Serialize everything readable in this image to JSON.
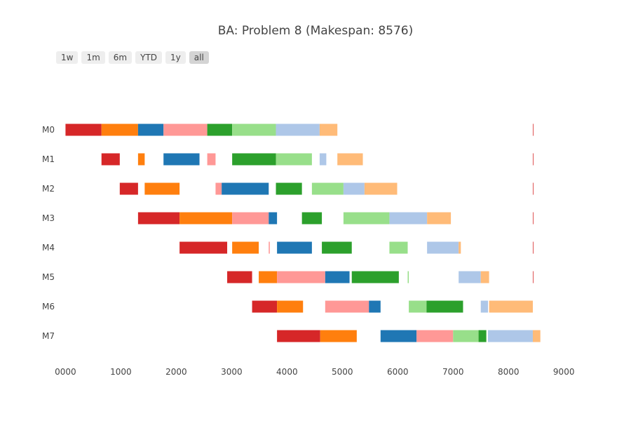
{
  "title": "BA: Problem 8 (Makespan: 8576)",
  "range_buttons": [
    {
      "label": "1w",
      "active": false
    },
    {
      "label": "1m",
      "active": false
    },
    {
      "label": "6m",
      "active": false
    },
    {
      "label": "YTD",
      "active": false
    },
    {
      "label": "1y",
      "active": false
    },
    {
      "label": "all",
      "active": true
    }
  ],
  "chart_data": {
    "type": "gantt",
    "title": "BA: Problem 8 (Makespan: 8576)",
    "machines": [
      "M0",
      "M1",
      "M2",
      "M3",
      "M4",
      "M5",
      "M6",
      "M7"
    ],
    "x_ticks": [
      0,
      1000,
      2000,
      3000,
      4000,
      5000,
      6000,
      7000,
      8000,
      9000
    ],
    "x_tick_labels": [
      "0000",
      "1000",
      "2000",
      "3000",
      "4000",
      "5000",
      "6000",
      "7000",
      "8000",
      "9000"
    ],
    "xlim": [
      -170,
      9200
    ],
    "colors": {
      "red": "#d62728",
      "orange": "#ff7f0e",
      "blue": "#1f77b4",
      "pink": "#ff9896",
      "green": "#2ca02c",
      "lightgreen": "#98df8a",
      "lightblue": "#aec7e8",
      "peach": "#ffbb78"
    },
    "tasks": [
      {
        "machine": "M0",
        "start": 0,
        "end": 650,
        "color": "red"
      },
      {
        "machine": "M0",
        "start": 650,
        "end": 1310,
        "color": "orange"
      },
      {
        "machine": "M0",
        "start": 1310,
        "end": 1770,
        "color": "blue"
      },
      {
        "machine": "M0",
        "start": 1770,
        "end": 2560,
        "color": "pink"
      },
      {
        "machine": "M0",
        "start": 2560,
        "end": 3010,
        "color": "green"
      },
      {
        "machine": "M0",
        "start": 3010,
        "end": 3800,
        "color": "lightgreen"
      },
      {
        "machine": "M0",
        "start": 3800,
        "end": 4590,
        "color": "lightblue"
      },
      {
        "machine": "M0",
        "start": 4590,
        "end": 4910,
        "color": "peach"
      },
      {
        "machine": "M0",
        "start": 8440,
        "end": 8450,
        "color": "red"
      },
      {
        "machine": "M1",
        "start": 650,
        "end": 980,
        "color": "red"
      },
      {
        "machine": "M1",
        "start": 1310,
        "end": 1430,
        "color": "orange"
      },
      {
        "machine": "M1",
        "start": 1770,
        "end": 2420,
        "color": "blue"
      },
      {
        "machine": "M1",
        "start": 2560,
        "end": 2710,
        "color": "pink"
      },
      {
        "machine": "M1",
        "start": 3010,
        "end": 3800,
        "color": "green"
      },
      {
        "machine": "M1",
        "start": 3800,
        "end": 4450,
        "color": "lightgreen"
      },
      {
        "machine": "M1",
        "start": 4590,
        "end": 4710,
        "color": "lightblue"
      },
      {
        "machine": "M1",
        "start": 4910,
        "end": 5370,
        "color": "peach"
      },
      {
        "machine": "M1",
        "start": 8440,
        "end": 8450,
        "color": "red"
      },
      {
        "machine": "M2",
        "start": 980,
        "end": 1310,
        "color": "red"
      },
      {
        "machine": "M2",
        "start": 1430,
        "end": 2060,
        "color": "orange"
      },
      {
        "machine": "M2",
        "start": 2710,
        "end": 2820,
        "color": "pink"
      },
      {
        "machine": "M2",
        "start": 2820,
        "end": 3670,
        "color": "blue"
      },
      {
        "machine": "M2",
        "start": 3800,
        "end": 4270,
        "color": "green"
      },
      {
        "machine": "M2",
        "start": 4450,
        "end": 5020,
        "color": "lightgreen"
      },
      {
        "machine": "M2",
        "start": 5020,
        "end": 5400,
        "color": "lightblue"
      },
      {
        "machine": "M2",
        "start": 5400,
        "end": 5990,
        "color": "peach"
      },
      {
        "machine": "M2",
        "start": 8440,
        "end": 8450,
        "color": "red"
      },
      {
        "machine": "M3",
        "start": 1310,
        "end": 2060,
        "color": "red"
      },
      {
        "machine": "M3",
        "start": 2060,
        "end": 3010,
        "color": "orange"
      },
      {
        "machine": "M3",
        "start": 3010,
        "end": 3670,
        "color": "pink"
      },
      {
        "machine": "M3",
        "start": 3670,
        "end": 3820,
        "color": "blue"
      },
      {
        "machine": "M3",
        "start": 4270,
        "end": 4630,
        "color": "green"
      },
      {
        "machine": "M3",
        "start": 5020,
        "end": 5850,
        "color": "lightgreen"
      },
      {
        "machine": "M3",
        "start": 5850,
        "end": 6530,
        "color": "lightblue"
      },
      {
        "machine": "M3",
        "start": 6530,
        "end": 6960,
        "color": "peach"
      },
      {
        "machine": "M3",
        "start": 8440,
        "end": 8450,
        "color": "red"
      },
      {
        "machine": "M4",
        "start": 2060,
        "end": 2920,
        "color": "red"
      },
      {
        "machine": "M4",
        "start": 3010,
        "end": 3490,
        "color": "orange"
      },
      {
        "machine": "M4",
        "start": 3670,
        "end": 3690,
        "color": "pink"
      },
      {
        "machine": "M4",
        "start": 3820,
        "end": 4450,
        "color": "blue"
      },
      {
        "machine": "M4",
        "start": 4630,
        "end": 5170,
        "color": "green"
      },
      {
        "machine": "M4",
        "start": 5850,
        "end": 6180,
        "color": "lightgreen"
      },
      {
        "machine": "M4",
        "start": 6530,
        "end": 7100,
        "color": "lightblue"
      },
      {
        "machine": "M4",
        "start": 7100,
        "end": 7140,
        "color": "peach"
      },
      {
        "machine": "M4",
        "start": 8440,
        "end": 8450,
        "color": "red"
      },
      {
        "machine": "M5",
        "start": 2920,
        "end": 3370,
        "color": "red"
      },
      {
        "machine": "M5",
        "start": 3490,
        "end": 3820,
        "color": "orange"
      },
      {
        "machine": "M5",
        "start": 3820,
        "end": 4690,
        "color": "pink"
      },
      {
        "machine": "M5",
        "start": 4690,
        "end": 5130,
        "color": "blue"
      },
      {
        "machine": "M5",
        "start": 5170,
        "end": 6020,
        "color": "green"
      },
      {
        "machine": "M5",
        "start": 6180,
        "end": 6200,
        "color": "lightgreen"
      },
      {
        "machine": "M5",
        "start": 7100,
        "end": 7500,
        "color": "lightblue"
      },
      {
        "machine": "M5",
        "start": 7500,
        "end": 7650,
        "color": "peach"
      },
      {
        "machine": "M5",
        "start": 8440,
        "end": 8450,
        "color": "red"
      },
      {
        "machine": "M6",
        "start": 3370,
        "end": 3820,
        "color": "red"
      },
      {
        "machine": "M6",
        "start": 3820,
        "end": 4290,
        "color": "orange"
      },
      {
        "machine": "M6",
        "start": 4690,
        "end": 5480,
        "color": "pink"
      },
      {
        "machine": "M6",
        "start": 5480,
        "end": 5690,
        "color": "blue"
      },
      {
        "machine": "M6",
        "start": 6200,
        "end": 6520,
        "color": "lightgreen"
      },
      {
        "machine": "M6",
        "start": 6520,
        "end": 7180,
        "color": "green"
      },
      {
        "machine": "M6",
        "start": 7500,
        "end": 7630,
        "color": "lightblue"
      },
      {
        "machine": "M6",
        "start": 7650,
        "end": 8440,
        "color": "peach"
      },
      {
        "machine": "M7",
        "start": 3820,
        "end": 4600,
        "color": "red"
      },
      {
        "machine": "M7",
        "start": 4600,
        "end": 5260,
        "color": "orange"
      },
      {
        "machine": "M7",
        "start": 5690,
        "end": 6340,
        "color": "blue"
      },
      {
        "machine": "M7",
        "start": 6340,
        "end": 7000,
        "color": "pink"
      },
      {
        "machine": "M7",
        "start": 7000,
        "end": 7460,
        "color": "lightgreen"
      },
      {
        "machine": "M7",
        "start": 7460,
        "end": 7600,
        "color": "green"
      },
      {
        "machine": "M7",
        "start": 7630,
        "end": 8440,
        "color": "lightblue"
      },
      {
        "machine": "M7",
        "start": 8440,
        "end": 8576,
        "color": "peach"
      }
    ]
  }
}
